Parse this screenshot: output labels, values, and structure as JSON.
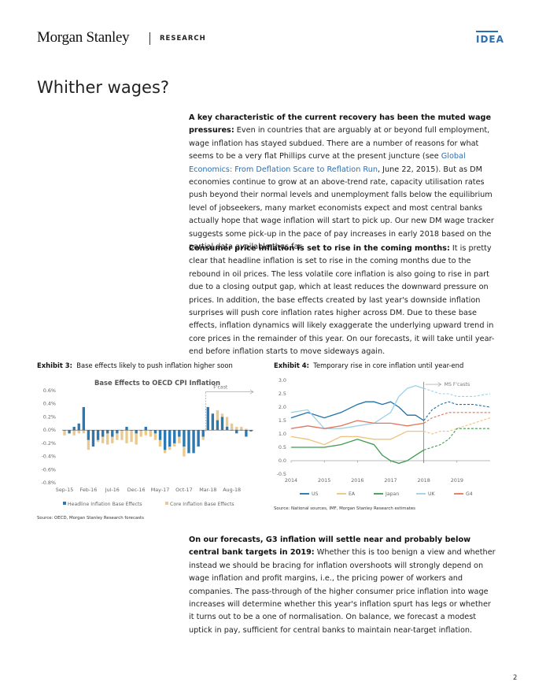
{
  "header": {
    "brand": "Morgan Stanley",
    "section": "RESEARCH",
    "badge": "IDEA"
  },
  "page_title": "Whither wages?",
  "paragraphs": [
    {
      "lead": "A key characteristic of the current recovery has been the muted wage pressures:",
      "text_before_link": " Even in countries that are arguably at or beyond full employment, wage inflation has stayed subdued. There are a number of reasons for what seems to be a very flat Phillips curve at the present juncture (see ",
      "link": "Global Economics: From Deflation Scare to Reflation Run",
      "text_after_link": ", June 22, 2015). But as DM economies continue to grow at an above-trend rate, capacity utilisation rates push beyond their normal levels and unemployment falls below the equilibrium level of jobseekers, many market economists expect and most central banks actually hope that wage inflation will start to pick up. Our new DM wage tracker suggests some pick-up in the pace of pay increases in early 2018 based on the partial data available thus far."
    },
    {
      "lead": "Consumer price inflation is set to rise in the coming months:",
      "text": " It is pretty clear that headline inflation is set to rise in the coming months due to the rebound in oil prices. The less volatile core inflation is also going to rise in part due to a closing output gap, which at least reduces the downward pressure on prices. In addition, the base effects created by last year's downside inflation surprises will push core inflation rates higher across DM. Due to these base effects, inflation dynamics will likely exaggerate the underlying upward trend in core prices in the remainder of this year. On our forecasts, it will take until year-end before inflation starts to move sideways again."
    },
    {
      "lead": "On our forecasts, G3 inflation will settle near and probably below central bank targets in 2019:",
      "text": " Whether this is too benign a view and whether instead we should be bracing for inflation overshoots will strongly depend on wage inflation and profit margins, i.e., the pricing power of workers and companies. The pass-through of the higher consumer price inflation into wage increases will determine whether this year's inflation spurt has legs or whether it turns out to be a one of normalisation. On balance, we forecast a modest uptick in pay, sufficient for central banks to maintain near-target inflation."
    }
  ],
  "exhibit3": {
    "label": "Exhibit 3:",
    "caption": "Base effects likely to push inflation higher soon",
    "source": "Source: OECD, Morgan Stanley Research forecasts"
  },
  "exhibit4": {
    "label": "Exhibit 4:",
    "caption": "Temporary rise in core inflation until year-end",
    "source": "Source: National sources, IMF, Morgan Stanley Research estimates"
  },
  "page_number": "2",
  "colors": {
    "brand_blue": "#2a6fb5",
    "headline_bar": "#2a78b4",
    "core_bar": "#e8c98f",
    "us": "#1f6fa8",
    "ea": "#efc27a",
    "japan": "#3d9a4e",
    "uk": "#9cd0e8",
    "g4": "#e3735a"
  },
  "chart_data": [
    {
      "type": "bar",
      "title": "Base Effects to OECD CPI Inflation",
      "annotation": "F'cast",
      "x_tick_labels": [
        "Sep-15",
        "Feb-16",
        "Jul-16",
        "Dec-16",
        "May-17",
        "Oct-17",
        "Mar-18",
        "Aug-18"
      ],
      "y_tick_labels": [
        "0.6%",
        "0.4%",
        "0.2%",
        "0.0%",
        "-0.2%",
        "-0.4%",
        "-0.6%",
        "-0.8%"
      ],
      "ylim": [
        -0.8,
        0.6
      ],
      "categories": [
        "Sep-15",
        "Oct-15",
        "Nov-15",
        "Dec-15",
        "Jan-16",
        "Feb-16",
        "Mar-16",
        "Apr-16",
        "May-16",
        "Jun-16",
        "Jul-16",
        "Aug-16",
        "Sep-16",
        "Oct-16",
        "Nov-16",
        "Dec-16",
        "Jan-17",
        "Feb-17",
        "Mar-17",
        "Apr-17",
        "May-17",
        "Jun-17",
        "Jul-17",
        "Aug-17",
        "Sep-17",
        "Oct-17",
        "Nov-17",
        "Dec-17",
        "Jan-18",
        "Feb-18",
        "Mar-18",
        "Apr-18",
        "May-18",
        "Jun-18",
        "Jul-18",
        "Aug-18",
        "Sep-18",
        "Oct-18",
        "Nov-18",
        "Dec-18"
      ],
      "series": [
        {
          "name": "Headline Inflation Base Effects",
          "values": [
            0.0,
            -0.05,
            0.05,
            0.1,
            0.35,
            -0.15,
            -0.25,
            -0.15,
            -0.1,
            -0.05,
            -0.1,
            -0.05,
            0.0,
            0.05,
            0.0,
            -0.05,
            0.0,
            0.05,
            0.0,
            -0.05,
            -0.15,
            -0.3,
            -0.25,
            -0.2,
            -0.1,
            -0.25,
            -0.35,
            -0.35,
            -0.25,
            -0.1,
            0.35,
            0.25,
            0.15,
            0.2,
            0.05,
            0.0,
            -0.05,
            0.0,
            -0.1,
            -0.02
          ]
        },
        {
          "name": "Core Inflation Base Effects",
          "values": [
            -0.08,
            -0.05,
            -0.08,
            -0.05,
            -0.05,
            -0.3,
            -0.22,
            -0.18,
            -0.2,
            -0.22,
            -0.2,
            -0.15,
            -0.15,
            -0.2,
            -0.18,
            -0.22,
            -0.1,
            -0.08,
            -0.1,
            -0.15,
            -0.25,
            -0.35,
            -0.3,
            -0.25,
            -0.2,
            -0.4,
            -0.35,
            -0.3,
            -0.25,
            -0.15,
            0.15,
            0.2,
            0.3,
            0.25,
            0.2,
            0.1,
            0.05,
            0.05,
            0.02,
            0.0
          ]
        }
      ]
    },
    {
      "type": "line",
      "annotation": "MS F'casts",
      "x_tick_labels": [
        "2014",
        "2015",
        "2016",
        "2017",
        "2018",
        "2019"
      ],
      "y_tick_labels": [
        "3.0",
        "2.5",
        "2.0",
        "1.5",
        "1.0",
        "0.5",
        "0.0",
        "-0.5"
      ],
      "ylim": [
        -0.5,
        3.0
      ],
      "xlim": [
        2014.0,
        2020.0
      ],
      "forecast_start": 2018.0,
      "series": [
        {
          "name": "US",
          "x": [
            2014.0,
            2014.5,
            2015.0,
            2015.5,
            2016.0,
            2016.25,
            2016.5,
            2016.75,
            2017.0,
            2017.25,
            2017.5,
            2017.75,
            2018.0,
            2018.25,
            2018.5,
            2018.75,
            2019.0,
            2019.5,
            2020.0
          ],
          "y": [
            1.6,
            1.8,
            1.6,
            1.8,
            2.1,
            2.2,
            2.2,
            2.1,
            2.2,
            2.0,
            1.7,
            1.7,
            1.5,
            1.9,
            2.1,
            2.2,
            2.1,
            2.1,
            2.0
          ]
        },
        {
          "name": "EA",
          "x": [
            2014.0,
            2014.5,
            2015.0,
            2015.5,
            2016.0,
            2016.5,
            2017.0,
            2017.5,
            2018.0,
            2018.25,
            2018.5,
            2018.75,
            2019.0,
            2019.5,
            2020.0
          ],
          "y": [
            0.9,
            0.8,
            0.6,
            0.9,
            0.9,
            0.8,
            0.8,
            1.1,
            1.1,
            1.0,
            1.1,
            1.1,
            1.2,
            1.4,
            1.6
          ]
        },
        {
          "name": "Japan",
          "x": [
            2014.0,
            2014.5,
            2015.0,
            2015.5,
            2016.0,
            2016.5,
            2016.75,
            2017.0,
            2017.25,
            2017.5,
            2017.75,
            2018.0,
            2018.25,
            2018.5,
            2018.75,
            2019.0,
            2019.5,
            2020.0
          ],
          "y": [
            0.5,
            0.5,
            0.5,
            0.6,
            0.8,
            0.6,
            0.2,
            0.0,
            -0.1,
            0.0,
            0.2,
            0.4,
            0.5,
            0.6,
            0.8,
            1.2,
            1.2,
            1.2
          ]
        },
        {
          "name": "UK",
          "x": [
            2014.0,
            2014.5,
            2015.0,
            2015.5,
            2016.0,
            2016.5,
            2017.0,
            2017.25,
            2017.5,
            2017.75,
            2018.0,
            2018.25,
            2018.5,
            2018.75,
            2019.0,
            2019.5,
            2020.0
          ],
          "y": [
            1.8,
            1.9,
            1.2,
            1.2,
            1.3,
            1.4,
            1.8,
            2.4,
            2.7,
            2.8,
            2.7,
            2.6,
            2.5,
            2.5,
            2.4,
            2.4,
            2.5
          ]
        },
        {
          "name": "G4",
          "x": [
            2014.0,
            2014.5,
            2015.0,
            2015.5,
            2016.0,
            2016.5,
            2017.0,
            2017.5,
            2018.0,
            2018.25,
            2018.5,
            2018.75,
            2019.0,
            2019.5,
            2020.0
          ],
          "y": [
            1.2,
            1.3,
            1.2,
            1.3,
            1.5,
            1.4,
            1.4,
            1.3,
            1.4,
            1.6,
            1.7,
            1.8,
            1.8,
            1.8,
            1.8
          ]
        }
      ]
    }
  ]
}
